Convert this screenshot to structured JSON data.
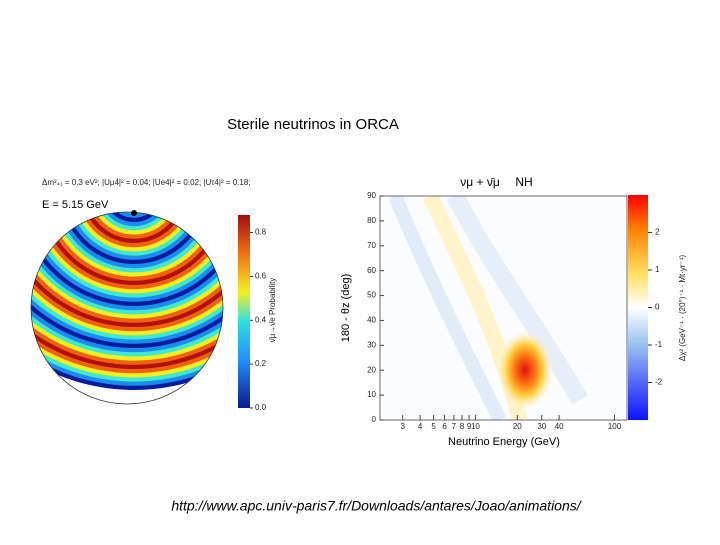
{
  "title": "Sterile neutrinos in ORCA",
  "left_figure": {
    "parameters": "Δm²₄₁ = 0.3 eV²; |Uμ4|² = 0.04; |Ue4|² = 0.02; |Uτ4|² = 0.18;",
    "energy": "E = 5.15 GeV",
    "colorbar": {
      "label": "ν̄μ→ν̄e Probability",
      "lim": [
        0,
        0.88
      ],
      "ticks": [
        {
          "value": 0,
          "label": "0.0"
        },
        0.2,
        0.4,
        0.6,
        0.8
      ]
    }
  },
  "right_figure": {
    "title": "νμ + ν̄μ",
    "hierarchy": "NH",
    "ylabel": "180 - θz (deg)",
    "ylim": [
      0,
      90
    ],
    "yticks": [
      0,
      10,
      20,
      30,
      40,
      50,
      60,
      70,
      80,
      90
    ],
    "xlabel": "Neutrino Energy (GeV)",
    "log_x": true,
    "xlim": [
      2.06,
      123
    ],
    "xticks": [
      3,
      4,
      5,
      6,
      7,
      8,
      9,
      10,
      20,
      30,
      40,
      100
    ],
    "colorbar": {
      "label": "Δχ² (GeV⁻¹ · (20°)⁻¹ · Mt·yr⁻¹)",
      "lim": [
        -3,
        3
      ],
      "ticks": [
        -2,
        -1,
        0,
        1,
        2
      ]
    }
  },
  "link": "http://www.apc.univ-paris7.fr/Downloads/antares/Joao/animations/"
}
